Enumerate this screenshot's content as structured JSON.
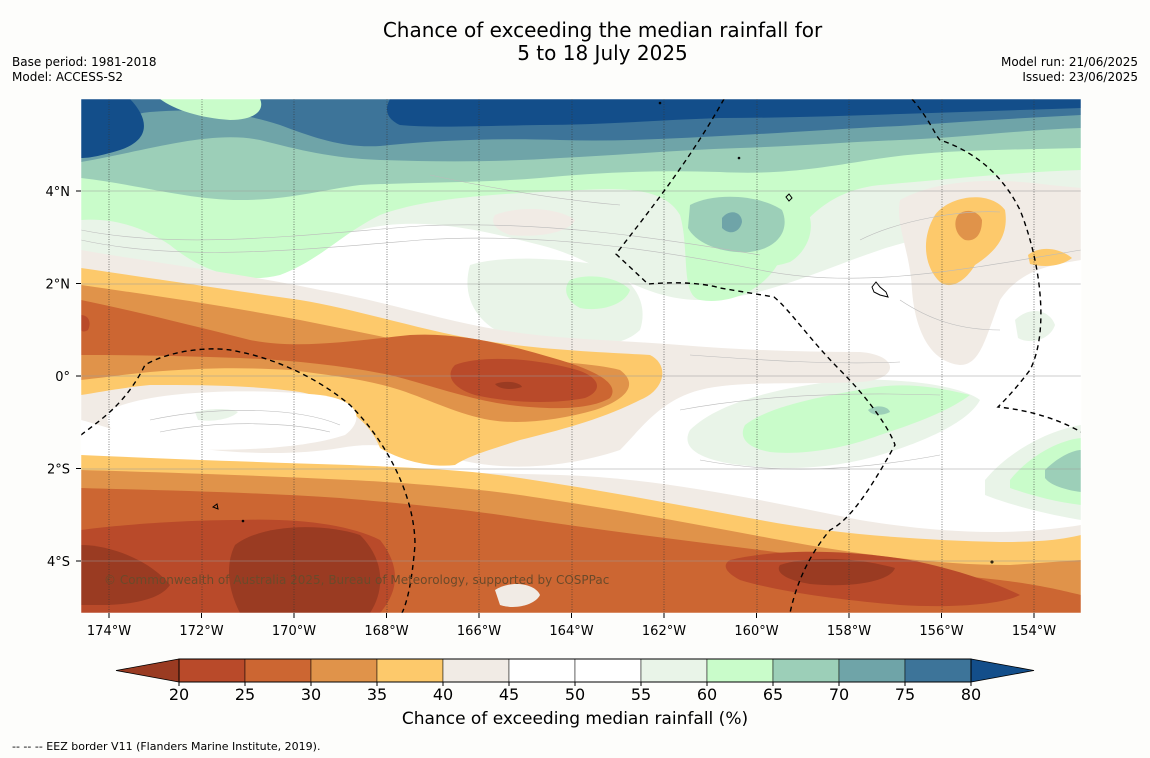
{
  "title_line1": "Chance of exceeding the median rainfall for",
  "title_line2": "5 to 18 July 2025",
  "base_period": "Base period: 1981-2018",
  "model": "Model: ACCESS-S2",
  "model_run": "Model run: 21/06/2025",
  "issued": "Issued: 23/06/2025",
  "copyright": "© Commonwealth of Australia 2025, Bureau of Meteorology, supported by COSPPac",
  "lat_labels": [
    {
      "lat": 4,
      "label": "4°N"
    },
    {
      "lat": 2,
      "label": "2°N"
    },
    {
      "lat": 0,
      "label": "0°"
    },
    {
      "lat": -2,
      "label": "2°S"
    },
    {
      "lat": -4,
      "label": "4°S"
    }
  ],
  "lon_labels": [
    {
      "lon": -174,
      "label": "174°W"
    },
    {
      "lon": -172,
      "label": "172°W"
    },
    {
      "lon": -170,
      "label": "170°W"
    },
    {
      "lon": -168,
      "label": "168°W"
    },
    {
      "lon": -166,
      "label": "166°W"
    },
    {
      "lon": -164,
      "label": "164°W"
    },
    {
      "lon": -162,
      "label": "162°W"
    },
    {
      "lon": -160,
      "label": "160°W"
    },
    {
      "lon": -158,
      "label": "158°W"
    },
    {
      "lon": -156,
      "label": "156°W"
    },
    {
      "lon": -154,
      "label": "154°W"
    }
  ],
  "colorbar": {
    "title": "Chance of exceeding median rainfall (%)",
    "ticks": [
      "20",
      "25",
      "30",
      "35",
      "40",
      "45",
      "50",
      "55",
      "60",
      "65",
      "70",
      "75",
      "80"
    ],
    "colors": [
      "#9a3b22",
      "#b94a2a",
      "#cc6632",
      "#e0934a",
      "#fdc96b",
      "#f1ebe5",
      "#ffffff",
      "#ffffff",
      "#e9f4e8",
      "#c9fcca",
      "#9ccfb8",
      "#6fa4a8",
      "#3d7499",
      "#134e8a"
    ]
  },
  "footnote": "--  --  -- EEZ border V11 (Flanders Marine Institute, 2019)."
}
